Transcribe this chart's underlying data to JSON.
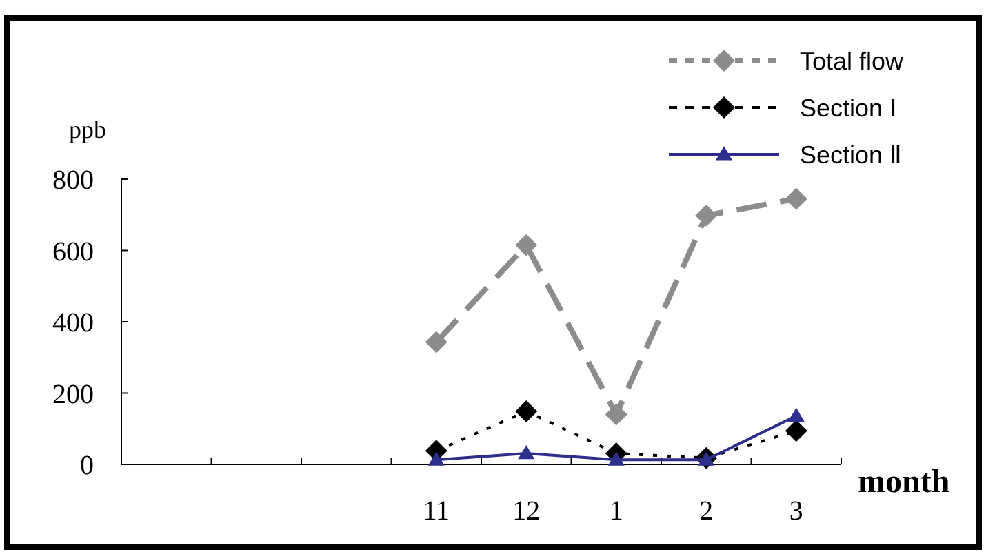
{
  "chart_data": {
    "type": "line",
    "xlabel": "month",
    "ylabel": "ppb",
    "categories": [
      null,
      null,
      null,
      "11",
      "12",
      "1",
      "2",
      "3"
    ],
    "ylim": [
      0,
      800
    ],
    "yticks": [
      0,
      200,
      400,
      600,
      800
    ],
    "grid": false,
    "legend": "top right",
    "series": [
      {
        "name": "Total flow",
        "color": "#8c8c8c",
        "line_style": "dashed",
        "marker": "diamond",
        "values": [
          null,
          null,
          null,
          343,
          615,
          140,
          698,
          745
        ]
      },
      {
        "name": "Section Ⅰ",
        "color": "#000000",
        "line_style": "dotted",
        "marker": "diamond",
        "values": [
          null,
          null,
          null,
          38,
          149,
          31,
          18,
          94
        ]
      },
      {
        "name": "Section Ⅱ",
        "color": "#2e2e8c",
        "line_style": "solid",
        "marker": "triangle",
        "values": [
          null,
          null,
          null,
          13,
          31,
          13,
          13,
          136
        ]
      }
    ]
  }
}
